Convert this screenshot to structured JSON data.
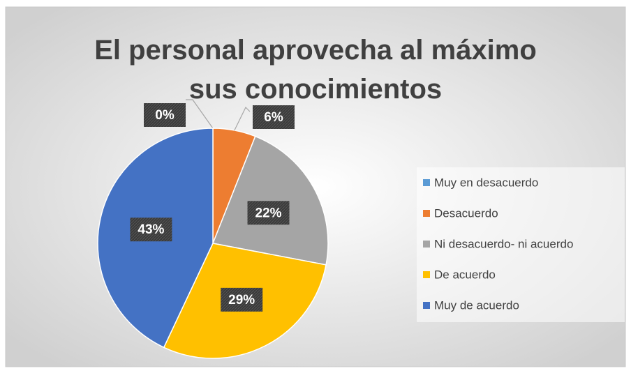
{
  "chart_data": {
    "type": "pie",
    "title": "El personal aprovecha al máximo sus conocimientos",
    "categories": [
      "Muy en desacuerdo",
      "Desacuerdo",
      "Ni desacuerdo- ni acuerdo",
      "De acuerdo",
      "Muy de acuerdo"
    ],
    "values": [
      0,
      6,
      22,
      29,
      43
    ],
    "value_labels": [
      "0%",
      "6%",
      "22%",
      "29%",
      "43%"
    ],
    "colors": [
      "#5b9bd5",
      "#ed7d31",
      "#a5a5a5",
      "#ffc000",
      "#4472c4"
    ],
    "legend": "right"
  }
}
